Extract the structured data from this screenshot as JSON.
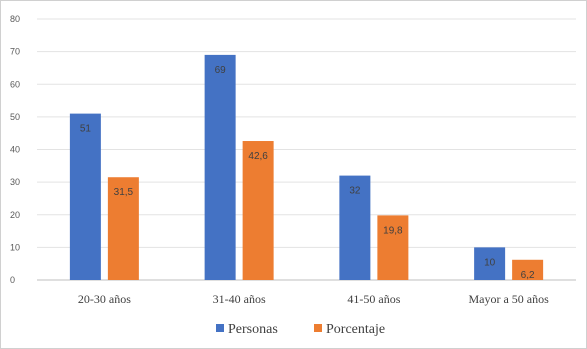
{
  "chart_data": {
    "type": "bar",
    "title": "",
    "xlabel": "",
    "ylabel": "",
    "categories": [
      "20-30 años",
      "31-40 años",
      "41-50 años",
      "Mayor a 50 años"
    ],
    "series": [
      {
        "name": "Personas",
        "color": "#4472C4",
        "values": [
          51,
          69,
          32,
          10
        ],
        "labels": [
          "51",
          "69",
          "32",
          "10"
        ]
      },
      {
        "name": "Porcentaje",
        "color": "#ED7D31",
        "values": [
          31.5,
          42.6,
          19.8,
          6.2
        ],
        "labels": [
          "31,5",
          "42,6",
          "19,8",
          "6,2"
        ]
      }
    ],
    "ylim": [
      0,
      80
    ],
    "yticks": [
      0,
      10,
      20,
      30,
      40,
      50,
      60,
      70,
      80
    ],
    "grid": true,
    "legend_position": "bottom"
  }
}
